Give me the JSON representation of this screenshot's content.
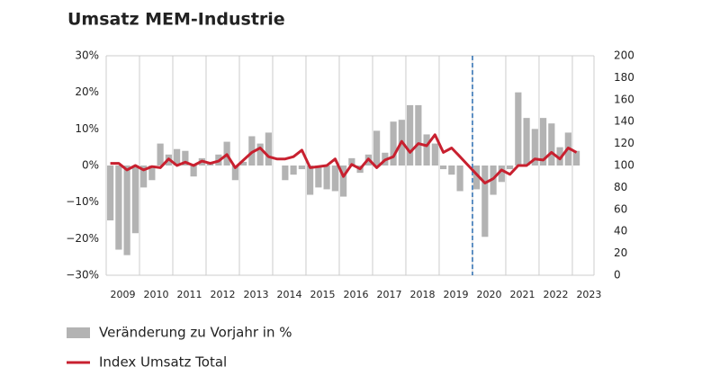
{
  "chart_data": {
    "type": "bar_line",
    "title": "Umsatz MEM-Industrie",
    "x": [
      2009.125,
      2009.375,
      2009.625,
      2009.875,
      2010.125,
      2010.375,
      2010.625,
      2010.875,
      2011.125,
      2011.375,
      2011.625,
      2011.875,
      2012.125,
      2012.375,
      2012.625,
      2012.875,
      2013.125,
      2013.375,
      2013.625,
      2013.875,
      2014.125,
      2014.375,
      2014.625,
      2014.875,
      2015.125,
      2015.375,
      2015.625,
      2015.875,
      2016.125,
      2016.375,
      2016.625,
      2016.875,
      2017.125,
      2017.375,
      2017.625,
      2017.875,
      2018.125,
      2018.375,
      2018.625,
      2018.875,
      2019.125,
      2019.375,
      2019.625,
      2019.875,
      2020.125,
      2020.375,
      2020.625,
      2020.875,
      2021.125,
      2021.375,
      2021.625,
      2021.875,
      2022.125,
      2022.375,
      2022.625,
      2022.875,
      2023.125
    ],
    "xlim": [
      2009,
      2023.65
    ],
    "xticks": [
      2009,
      2010,
      2011,
      2012,
      2013,
      2014,
      2015,
      2016,
      2017,
      2018,
      2019,
      2020,
      2021,
      2022,
      2023
    ],
    "vline": 2020,
    "series": [
      {
        "name": "Veränderung zu Vorjahr in %",
        "type": "bar",
        "color": "#b3b3b3",
        "values": [
          -15,
          -23,
          -24.5,
          -18.5,
          -6,
          -4,
          6,
          3,
          4.5,
          4,
          -3,
          2,
          1,
          3,
          6.5,
          -4,
          1,
          8,
          6,
          9,
          0,
          -4,
          -2.5,
          -1,
          -8,
          -6,
          -6.5,
          -7,
          -8.5,
          2,
          -2,
          3,
          9.5,
          3.5,
          12,
          12.5,
          16.5,
          16.5,
          8.5,
          6,
          -1,
          -2.5,
          -7,
          0,
          -6.5,
          -19.5,
          -8,
          -4.5,
          -1,
          20,
          13,
          10,
          13,
          11.5,
          5,
          9,
          4
        ]
      },
      {
        "name": "Index Umsatz Total",
        "type": "line",
        "axis": "y2",
        "color": "#c8202f",
        "values": [
          102,
          102,
          96,
          100,
          96,
          99,
          98,
          106,
          100,
          103,
          100,
          104,
          102,
          104,
          110,
          98,
          105,
          112,
          116,
          108,
          106,
          106,
          108,
          114,
          98,
          99,
          100,
          106,
          90,
          101,
          97,
          106,
          98,
          105,
          108,
          122,
          112,
          120,
          118,
          128,
          112,
          116,
          108,
          100,
          92,
          84,
          88,
          96,
          92,
          100,
          100,
          106,
          105,
          112,
          106,
          116,
          112
        ]
      }
    ],
    "ylim": [
      -30,
      30
    ],
    "yticks": [
      {
        "value": -30,
        "label": "−30%"
      },
      {
        "value": -20,
        "label": "−20%"
      },
      {
        "value": -10,
        "label": "−10%"
      },
      {
        "value": 0,
        "label": "0%"
      },
      {
        "value": 10,
        "label": "10%"
      },
      {
        "value": 20,
        "label": "20%"
      },
      {
        "value": 30,
        "label": "30%"
      }
    ],
    "y2lim": [
      0,
      200
    ],
    "y2ticks": [
      0,
      20,
      40,
      60,
      80,
      100,
      120,
      140,
      160,
      180,
      200
    ]
  }
}
